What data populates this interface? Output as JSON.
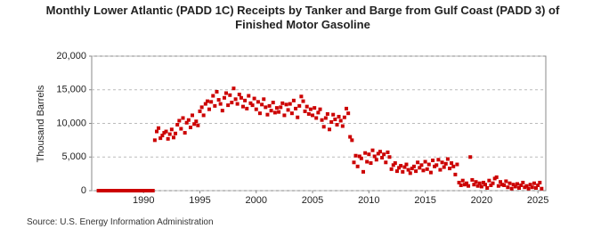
{
  "chart_data": {
    "type": "scatter",
    "title": "Monthly Lower Atlantic (PADD 1C) Receipts by Tanker and Barge from Gulf Coast (PADD 3) of Finished Motor Gasoline",
    "ylabel": "Thousand Barrels",
    "source": "Source: U.S. Energy Information Administration",
    "color": "#cc0000",
    "grid": true,
    "xlim": [
      1985.4,
      2025.7
    ],
    "xticks": [
      1990,
      1995,
      2000,
      2005,
      2010,
      2015,
      2020,
      2025
    ],
    "ylim": [
      0,
      20000
    ],
    "yticks": [
      0,
      {
        "value": 5000,
        "label": "5,000"
      },
      {
        "value": 10000,
        "label": "10,000"
      },
      {
        "value": 15000,
        "label": "15,000"
      },
      {
        "value": 20000,
        "label": "20,000"
      }
    ],
    "x": [
      1986,
      1986.17,
      1986.33,
      1986.5,
      1986.67,
      1986.83,
      1987,
      1987.17,
      1987.33,
      1987.5,
      1987.67,
      1987.83,
      1988,
      1988.17,
      1988.33,
      1988.5,
      1988.67,
      1988.83,
      1989,
      1989.17,
      1989.33,
      1989.5,
      1989.67,
      1989.83,
      1990,
      1990.17,
      1990.33,
      1990.5,
      1990.67,
      1990.83,
      1991,
      1991.17,
      1991.33,
      1991.5,
      1991.67,
      1991.83,
      1992,
      1992.17,
      1992.33,
      1992.5,
      1992.67,
      1992.83,
      1993,
      1993.17,
      1993.33,
      1993.5,
      1993.67,
      1993.83,
      1994,
      1994.17,
      1994.33,
      1994.5,
      1994.67,
      1994.83,
      1995,
      1995.17,
      1995.33,
      1995.5,
      1995.67,
      1995.83,
      1996,
      1996.17,
      1996.33,
      1996.5,
      1996.67,
      1996.83,
      1997,
      1997.17,
      1997.33,
      1997.5,
      1997.67,
      1997.83,
      1998,
      1998.17,
      1998.33,
      1998.5,
      1998.67,
      1998.83,
      1999,
      1999.17,
      1999.33,
      1999.5,
      1999.67,
      1999.83,
      2000,
      2000.17,
      2000.33,
      2000.5,
      2000.67,
      2000.83,
      2001,
      2001.17,
      2001.33,
      2001.5,
      2001.67,
      2001.83,
      2002,
      2002.17,
      2002.33,
      2002.5,
      2002.67,
      2002.83,
      2003,
      2003.17,
      2003.33,
      2003.5,
      2003.67,
      2003.83,
      2004,
      2004.17,
      2004.33,
      2004.5,
      2004.67,
      2004.83,
      2005,
      2005.17,
      2005.33,
      2005.5,
      2005.67,
      2005.83,
      2006,
      2006.17,
      2006.33,
      2006.5,
      2006.67,
      2006.83,
      2007,
      2007.17,
      2007.33,
      2007.5,
      2007.67,
      2007.83,
      2008,
      2008.17,
      2008.33,
      2008.5,
      2008.67,
      2008.83,
      2009,
      2009.17,
      2009.33,
      2009.5,
      2009.67,
      2009.83,
      2010,
      2010.17,
      2010.33,
      2010.5,
      2010.67,
      2010.83,
      2011,
      2011.17,
      2011.33,
      2011.5,
      2011.67,
      2011.83,
      2012,
      2012.17,
      2012.33,
      2012.5,
      2012.67,
      2012.83,
      2013,
      2013.17,
      2013.33,
      2013.5,
      2013.67,
      2013.83,
      2014,
      2014.17,
      2014.33,
      2014.5,
      2014.67,
      2014.83,
      2015,
      2015.17,
      2015.33,
      2015.5,
      2015.67,
      2015.83,
      2016,
      2016.17,
      2016.33,
      2016.5,
      2016.67,
      2016.83,
      2017,
      2017.17,
      2017.33,
      2017.5,
      2017.67,
      2017.83,
      2018,
      2018.17,
      2018.33,
      2018.5,
      2018.67,
      2018.83,
      2019,
      2019.17,
      2019.33,
      2019.5,
      2019.67,
      2019.83,
      2020,
      2020.17,
      2020.33,
      2020.5,
      2020.67,
      2020.83,
      2021,
      2021.17,
      2021.33,
      2021.5,
      2021.67,
      2021.83,
      2022,
      2022.17,
      2022.33,
      2022.5,
      2022.67,
      2022.83,
      2023,
      2023.17,
      2023.33,
      2023.5,
      2023.67,
      2023.83,
      2024,
      2024.17,
      2024.33,
      2024.5,
      2024.67,
      2024.83,
      2025,
      2025.17,
      2025.33
    ],
    "values": [
      0,
      0,
      0,
      0,
      0,
      0,
      0,
      0,
      0,
      0,
      0,
      0,
      0,
      0,
      0,
      0,
      0,
      0,
      0,
      0,
      0,
      0,
      0,
      0,
      0,
      0,
      0,
      0,
      0,
      0,
      7500,
      8800,
      9300,
      7800,
      8200,
      8600,
      8800,
      7700,
      8400,
      9100,
      7900,
      8500,
      9800,
      10400,
      9200,
      10800,
      8600,
      10100,
      10500,
      9400,
      11200,
      9900,
      10300,
      9700,
      11800,
      12400,
      11200,
      12900,
      13300,
      12100,
      13200,
      14100,
      12600,
      14700,
      13500,
      12900,
      11900,
      13800,
      14500,
      12700,
      14200,
      13100,
      15200,
      13600,
      12900,
      14300,
      13800,
      12500,
      13400,
      12200,
      14100,
      13000,
      12700,
      13700,
      12100,
      13200,
      11500,
      12800,
      13600,
      12400,
      11300,
      12600,
      11900,
      13100,
      11600,
      12300,
      11700,
      12400,
      13000,
      11200,
      12800,
      12000,
      12900,
      11500,
      13400,
      12200,
      10900,
      12600,
      14000,
      13300,
      11800,
      12500,
      11400,
      12100,
      11200,
      12300,
      10800,
      11600,
      12100,
      10500,
      9500,
      10800,
      11400,
      9100,
      10200,
      11300,
      10600,
      9800,
      11000,
      10400,
      9600,
      10900,
      12200,
      11500,
      8000,
      7500,
      4200,
      5200,
      3600,
      5100,
      4800,
      2800,
      5600,
      4300,
      5400,
      4100,
      6000,
      5100,
      4600,
      5500,
      5800,
      4900,
      5400,
      4200,
      5700,
      5000,
      3200,
      3800,
      4100,
      2900,
      3400,
      3700,
      2800,
      3500,
      3900,
      3100,
      2600,
      3300,
      3600,
      2900,
      4200,
      3400,
      3800,
      3000,
      4300,
      3200,
      3900,
      2700,
      4500,
      3600,
      3800,
      4600,
      3100,
      4200,
      3500,
      4000,
      4700,
      3300,
      4100,
      3600,
      2400,
      3900,
      1200,
      800,
      1500,
      900,
      1100,
      700,
      5000,
      1600,
      900,
      1300,
      700,
      1100,
      600,
      1200,
      900,
      400,
      1500,
      800,
      1100,
      1800,
      2000,
      700,
      1300,
      900,
      800,
      1400,
      500,
      1100,
      300,
      900,
      600,
      1000,
      400,
      800,
      1200,
      500,
      700,
      300,
      900,
      500,
      1100,
      400,
      800,
      1200,
      300
    ]
  }
}
